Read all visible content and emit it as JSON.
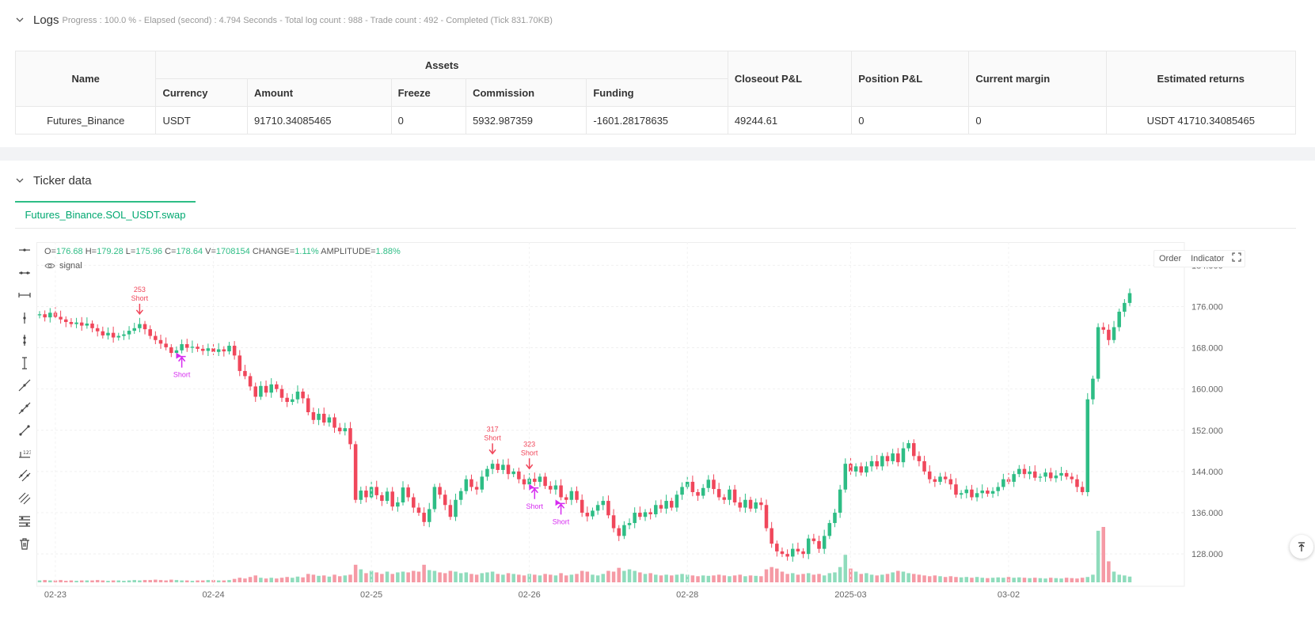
{
  "logs": {
    "title": "Logs",
    "summary": "Progress : 100.0 % - Elapsed (second) : 4.794 Seconds - Total log count : 988 - Trade count : 492 - Completed (Tick 831.70KB)",
    "table": {
      "headers": {
        "name": "Name",
        "assets": "Assets",
        "currency": "Currency",
        "amount": "Amount",
        "freeze": "Freeze",
        "commission": "Commission",
        "funding": "Funding",
        "closeout_pnl": "Closeout P&L",
        "position_pnl": "Position P&L",
        "current_margin": "Current margin",
        "estimated_returns": "Estimated returns"
      },
      "row": {
        "name": "Futures_Binance",
        "currency": "USDT",
        "amount": "91710.34085465",
        "freeze": "0",
        "commission": "5932.987359",
        "funding": "-1601.28178635",
        "closeout_pnl": "49244.61",
        "position_pnl": "0",
        "current_margin": "0",
        "estimated_returns": "USDT 41710.34085465"
      }
    }
  },
  "ticker": {
    "title": "Ticker data",
    "tab": "Futures_Binance.SOL_USDT.swap",
    "ohlc": {
      "o_label": "O=",
      "o": "176.68",
      "h_label": "H=",
      "h": "179.28",
      "l_label": "L=",
      "l": "175.96",
      "c_label": "C=",
      "c": "178.64",
      "v_label": "V=",
      "v": "1708154",
      "change_label": "CHANGE=",
      "change": "1.11%",
      "amplitude_label": "AMPLITUDE=",
      "amplitude": "1.88%"
    },
    "indicator_name": "signal",
    "buttons": {
      "order": "Order",
      "indicator": "Indicator"
    },
    "tools": [
      "horizontal-line-icon",
      "horizontal-ray-icon",
      "extended-line-icon",
      "vertical-line-icon",
      "vertical-segment-icon",
      "vertical-ray-icon",
      "trend-line-icon",
      "ray-line-icon",
      "segment-line-icon",
      "price-range-icon",
      "parallel-channel-icon",
      "multi-channel-icon",
      "fib-levels-icon",
      "trash-icon"
    ]
  },
  "colors": {
    "up": "#2ebd85",
    "down": "#f0475b",
    "signal": "#d62bf0",
    "accent": "#00a870"
  },
  "chart_data": {
    "type": "candlestick",
    "y_ticks": [
      "184.000",
      "176.000",
      "168.000",
      "160.000",
      "152.000",
      "144.000",
      "136.000",
      "128.000"
    ],
    "x_ticks": [
      "02-23",
      "02-24",
      "02-25",
      "02-26",
      "02-28",
      "2025-03",
      "03-02"
    ],
    "ylim": [
      122.5,
      188.5
    ],
    "candles": [
      [
        174.3,
        174.5
      ],
      [
        174.5,
        173.9
      ],
      [
        173.9,
        174.8
      ],
      [
        174.8,
        174.0
      ],
      [
        174.0,
        173.5
      ],
      [
        173.5,
        173.0
      ],
      [
        173.0,
        172.6
      ],
      [
        172.6,
        172.9
      ],
      [
        172.9,
        172.3
      ],
      [
        172.3,
        172.7
      ],
      [
        172.7,
        171.8
      ],
      [
        171.8,
        171.2
      ],
      [
        171.2,
        170.4
      ],
      [
        170.4,
        170.9
      ],
      [
        170.9,
        170.0
      ],
      [
        170.0,
        170.3
      ],
      [
        170.3,
        170.6
      ],
      [
        170.6,
        171.3
      ],
      [
        171.3,
        171.8
      ],
      [
        171.8,
        172.6
      ],
      [
        172.6,
        171.6
      ],
      [
        171.6,
        170.3
      ],
      [
        170.3,
        169.5
      ],
      [
        169.5,
        168.8
      ],
      [
        168.8,
        168.1
      ],
      [
        168.1,
        167.0
      ],
      [
        167.0,
        167.5
      ],
      [
        167.5,
        168.7
      ],
      [
        168.7,
        168.0
      ],
      [
        168.0,
        168.2
      ],
      [
        168.2,
        167.8
      ],
      [
        167.8,
        167.4
      ],
      [
        167.4,
        167.9
      ],
      [
        167.9,
        167.2
      ],
      [
        167.2,
        167.7
      ],
      [
        167.7,
        167.3
      ],
      [
        167.3,
        168.4
      ],
      [
        168.4,
        166.5
      ],
      [
        166.5,
        163.5
      ],
      [
        163.5,
        162.5
      ],
      [
        162.5,
        160.5
      ],
      [
        160.5,
        158.5
      ],
      [
        158.5,
        160.6
      ],
      [
        160.6,
        159.3
      ],
      [
        159.3,
        160.9
      ],
      [
        160.9,
        160.0
      ],
      [
        160.0,
        158.3
      ],
      [
        158.3,
        157.5
      ],
      [
        157.5,
        158.0
      ],
      [
        158.0,
        159.5
      ],
      [
        159.5,
        158.2
      ],
      [
        158.2,
        155.5
      ],
      [
        155.5,
        154.0
      ],
      [
        154.0,
        155.2
      ],
      [
        155.2,
        153.5
      ],
      [
        153.5,
        154.5
      ],
      [
        154.5,
        152.5
      ],
      [
        152.5,
        151.8
      ],
      [
        151.8,
        152.4
      ],
      [
        152.4,
        149.3
      ],
      [
        149.3,
        138.5
      ],
      [
        138.5,
        140.3
      ],
      [
        140.3,
        139.0
      ],
      [
        139.0,
        141.0
      ],
      [
        141.0,
        139.4
      ],
      [
        139.4,
        138.3
      ],
      [
        138.3,
        140.1
      ],
      [
        140.1,
        137.2
      ],
      [
        137.2,
        138.0
      ],
      [
        138.0,
        140.9
      ],
      [
        140.9,
        139.0
      ],
      [
        139.0,
        137.0
      ],
      [
        137.0,
        136.0
      ],
      [
        136.0,
        134.2
      ],
      [
        134.2,
        136.7
      ],
      [
        136.7,
        141.0
      ],
      [
        141.0,
        139.5
      ],
      [
        139.5,
        137.5
      ],
      [
        137.5,
        135.2
      ],
      [
        135.2,
        138.5
      ],
      [
        138.5,
        140.2
      ],
      [
        140.2,
        142.5
      ],
      [
        142.5,
        141.0
      ],
      [
        141.0,
        140.5
      ],
      [
        140.5,
        143.0
      ],
      [
        143.0,
        144.5
      ],
      [
        144.5,
        145.5
      ],
      [
        145.5,
        144.3
      ],
      [
        144.3,
        145.3
      ],
      [
        145.3,
        143.5
      ],
      [
        143.5,
        144.0
      ],
      [
        144.0,
        142.5
      ],
      [
        142.5,
        141.5
      ],
      [
        141.5,
        142.6
      ],
      [
        142.6,
        142.0
      ],
      [
        142.0,
        143.0
      ],
      [
        143.0,
        141.2
      ],
      [
        141.2,
        140.5
      ],
      [
        140.5,
        141.3
      ],
      [
        141.3,
        139.0
      ],
      [
        139.0,
        138.5
      ],
      [
        138.5,
        140.2
      ],
      [
        140.2,
        138.5
      ],
      [
        138.5,
        136.0
      ],
      [
        136.0,
        135.3
      ],
      [
        135.3,
        136.4
      ],
      [
        136.4,
        137.5
      ],
      [
        137.5,
        138.3
      ],
      [
        138.3,
        135.5
      ],
      [
        135.5,
        133.0
      ],
      [
        133.0,
        131.5
      ],
      [
        131.5,
        133.6
      ],
      [
        133.6,
        134.0
      ],
      [
        134.0,
        136.0
      ],
      [
        136.0,
        135.2
      ],
      [
        135.2,
        136.1
      ],
      [
        136.1,
        135.7
      ],
      [
        135.7,
        137.5
      ],
      [
        137.5,
        136.8
      ],
      [
        136.8,
        138.3
      ],
      [
        138.3,
        137.0
      ],
      [
        137.0,
        139.5
      ],
      [
        139.5,
        141.0
      ],
      [
        141.0,
        142.0
      ],
      [
        142.0,
        140.0
      ],
      [
        140.0,
        139.3
      ],
      [
        139.3,
        140.8
      ],
      [
        140.8,
        142.4
      ],
      [
        142.4,
        140.6
      ],
      [
        140.6,
        139.0
      ],
      [
        139.0,
        138.5
      ],
      [
        138.5,
        140.5
      ],
      [
        140.5,
        138.0
      ],
      [
        138.0,
        137.0
      ],
      [
        137.0,
        138.5
      ],
      [
        138.5,
        136.8
      ],
      [
        136.8,
        138.0
      ],
      [
        138.0,
        137.5
      ],
      [
        137.5,
        133.0
      ],
      [
        133.0,
        130.0
      ],
      [
        130.0,
        128.5
      ],
      [
        128.5,
        128.0
      ],
      [
        128.0,
        127.5
      ],
      [
        127.5,
        129.0
      ],
      [
        129.0,
        128.5
      ],
      [
        128.5,
        128.0
      ],
      [
        128.0,
        131.0
      ],
      [
        131.0,
        130.5
      ],
      [
        130.5,
        129.0
      ],
      [
        129.0,
        131.5
      ],
      [
        131.5,
        134.0
      ],
      [
        134.0,
        136.0
      ],
      [
        136.0,
        140.5
      ],
      [
        140.5,
        145.5
      ],
      [
        145.5,
        144.0
      ],
      [
        144.0,
        145.0
      ],
      [
        145.0,
        143.8
      ],
      [
        143.8,
        145.0
      ],
      [
        145.0,
        146.0
      ],
      [
        146.0,
        145.0
      ],
      [
        145.0,
        147.0
      ],
      [
        147.0,
        146.0
      ],
      [
        146.0,
        147.5
      ],
      [
        147.5,
        145.8
      ],
      [
        145.8,
        148.5
      ],
      [
        148.5,
        149.5
      ],
      [
        149.5,
        147.0
      ],
      [
        147.0,
        146.0
      ],
      [
        146.0,
        144.0
      ],
      [
        144.0,
        142.5
      ],
      [
        142.5,
        142.0
      ],
      [
        142.0,
        143.0
      ],
      [
        143.0,
        142.5
      ],
      [
        142.5,
        141.5
      ],
      [
        141.5,
        139.5
      ],
      [
        139.5,
        139.8
      ],
      [
        139.8,
        140.5
      ],
      [
        140.5,
        139.0
      ],
      [
        139.0,
        139.8
      ],
      [
        139.8,
        140.3
      ],
      [
        140.3,
        139.7
      ],
      [
        139.7,
        140.2
      ],
      [
        140.2,
        141.0
      ],
      [
        141.0,
        142.5
      ],
      [
        142.5,
        142.0
      ],
      [
        142.0,
        143.5
      ],
      [
        143.5,
        144.5
      ],
      [
        144.5,
        143.5
      ],
      [
        143.5,
        144.0
      ],
      [
        144.0,
        142.8
      ],
      [
        142.8,
        143.0
      ],
      [
        143.0,
        143.8
      ],
      [
        143.8,
        142.7
      ],
      [
        142.7,
        143.2
      ],
      [
        143.2,
        143.7
      ],
      [
        143.7,
        143.0
      ],
      [
        143.0,
        142.5
      ],
      [
        142.5,
        141.0
      ],
      [
        141.0,
        140.0
      ],
      [
        140.0,
        158.0
      ],
      [
        158.0,
        162.0
      ],
      [
        162.0,
        172.0
      ],
      [
        172.0,
        171.5
      ],
      [
        171.5,
        169.5
      ],
      [
        169.5,
        172.0
      ],
      [
        172.0,
        175.0
      ],
      [
        175.0,
        176.7
      ],
      [
        176.7,
        178.6
      ]
    ],
    "volumes": [
      0.05,
      0.06,
      0.05,
      0.05,
      0.06,
      0.04,
      0.05,
      0.04,
      0.05,
      0.05,
      0.05,
      0.06,
      0.05,
      0.04,
      0.05,
      0.05,
      0.04,
      0.05,
      0.06,
      0.05,
      0.06,
      0.06,
      0.07,
      0.06,
      0.05,
      0.07,
      0.06,
      0.05,
      0.05,
      0.04,
      0.05,
      0.05,
      0.06,
      0.06,
      0.05,
      0.05,
      0.06,
      0.09,
      0.12,
      0.1,
      0.14,
      0.18,
      0.12,
      0.1,
      0.12,
      0.1,
      0.12,
      0.14,
      0.12,
      0.15,
      0.13,
      0.22,
      0.2,
      0.17,
      0.18,
      0.15,
      0.2,
      0.16,
      0.18,
      0.2,
      0.46,
      0.34,
      0.24,
      0.3,
      0.26,
      0.22,
      0.28,
      0.22,
      0.26,
      0.28,
      0.26,
      0.3,
      0.28,
      0.46,
      0.32,
      0.3,
      0.26,
      0.24,
      0.3,
      0.28,
      0.24,
      0.26,
      0.22,
      0.2,
      0.24,
      0.26,
      0.28,
      0.22,
      0.2,
      0.24,
      0.22,
      0.2,
      0.18,
      0.22,
      0.2,
      0.18,
      0.22,
      0.2,
      0.18,
      0.24,
      0.18,
      0.2,
      0.22,
      0.3,
      0.28,
      0.2,
      0.18,
      0.22,
      0.3,
      0.28,
      0.38,
      0.3,
      0.34,
      0.3,
      0.26,
      0.22,
      0.24,
      0.2,
      0.18,
      0.2,
      0.18,
      0.2,
      0.22,
      0.2,
      0.18,
      0.16,
      0.18,
      0.17,
      0.18,
      0.2,
      0.18,
      0.16,
      0.18,
      0.2,
      0.16,
      0.18,
      0.17,
      0.16,
      0.34,
      0.4,
      0.36,
      0.28,
      0.22,
      0.24,
      0.2,
      0.22,
      0.24,
      0.2,
      0.22,
      0.18,
      0.24,
      0.26,
      0.4,
      0.72,
      0.36,
      0.28,
      0.22,
      0.24,
      0.2,
      0.18,
      0.2,
      0.22,
      0.26,
      0.3,
      0.28,
      0.24,
      0.22,
      0.2,
      0.18,
      0.16,
      0.18,
      0.16,
      0.14,
      0.16,
      0.14,
      0.13,
      0.14,
      0.12,
      0.14,
      0.12,
      0.11,
      0.12,
      0.13,
      0.12,
      0.14,
      0.12,
      0.13,
      0.12,
      0.11,
      0.12,
      0.11,
      0.1,
      0.12,
      0.11,
      0.1,
      0.12,
      0.11,
      0.1,
      0.12,
      0.14,
      0.2,
      1.35,
      1.45,
      0.55,
      0.28,
      0.2,
      0.18,
      0.15,
      0.12,
      0.14
    ],
    "markers": [
      {
        "index": 19,
        "type": "entry",
        "id": "253",
        "label": "Short"
      },
      {
        "index": 27,
        "type": "signal",
        "label": "Short"
      },
      {
        "index": 86,
        "type": "entry",
        "id": "317",
        "label": "Short"
      },
      {
        "index": 94,
        "type": "signal",
        "label": "Short"
      },
      {
        "index": 93,
        "type": "entry",
        "id": "323",
        "label": "Short"
      },
      {
        "index": 99,
        "type": "signal",
        "label": "Short"
      }
    ]
  }
}
